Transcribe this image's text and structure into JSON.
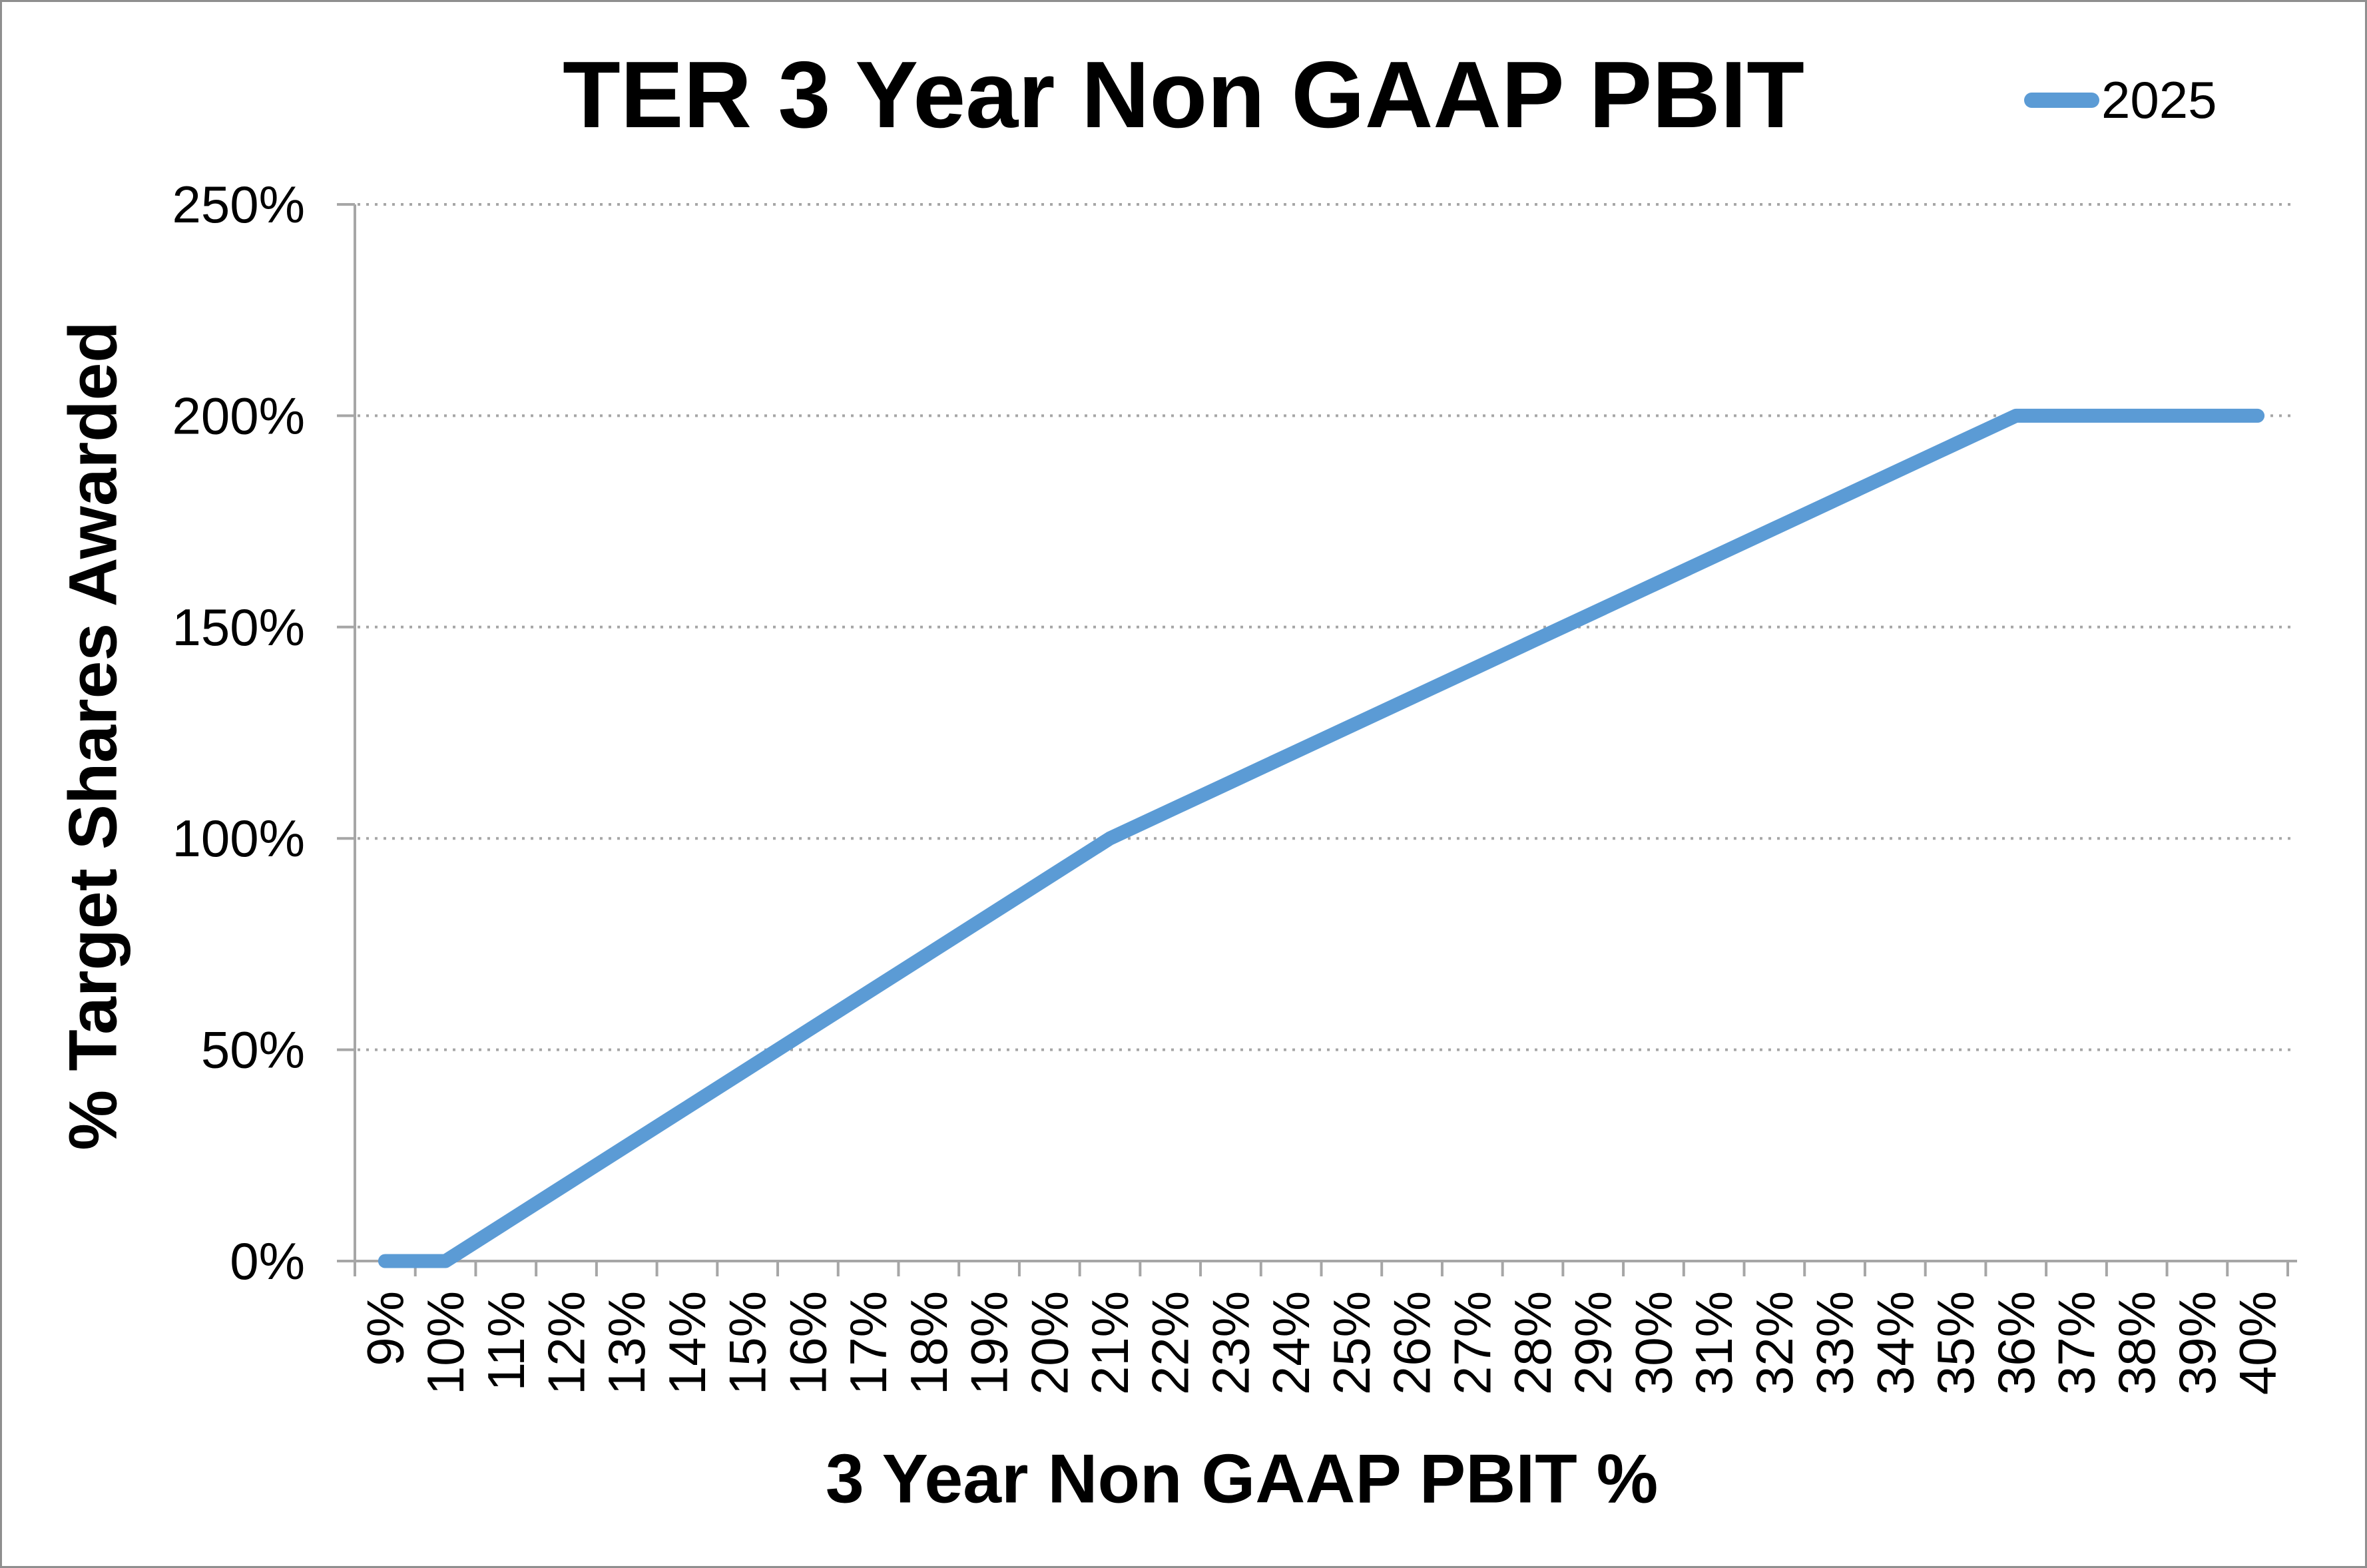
{
  "title": "TER 3 Year Non GAAP PBIT",
  "legend": {
    "series_label": "2025",
    "position": "top-right"
  },
  "y_axis": {
    "title": "% Target Shares Awarded",
    "ticks": [
      "0%",
      "50%",
      "100%",
      "150%",
      "200%",
      "250%"
    ]
  },
  "x_axis": {
    "title": "3 Year Non GAAP PBIT %"
  },
  "colors": {
    "series_line": "#5B9BD5",
    "axis_line": "#A6A6A6",
    "gridline": "#A6A6A6",
    "text": "#000000",
    "frame_border": "#8f8f8f",
    "background": "#ffffff"
  },
  "chart_data": {
    "type": "line",
    "title": "TER 3 Year Non GAAP PBIT",
    "xlabel": "3 Year Non GAAP PBIT %",
    "ylabel": "% Target Shares Awarded",
    "categories": [
      "9%",
      "10%",
      "11%",
      "12%",
      "13%",
      "14%",
      "15%",
      "16%",
      "17%",
      "18%",
      "19%",
      "20%",
      "21%",
      "22%",
      "23%",
      "24%",
      "25%",
      "26%",
      "27%",
      "28%",
      "29%",
      "30%",
      "31%",
      "32%",
      "33%",
      "34%",
      "35%",
      "36%",
      "37%",
      "38%",
      "39%",
      "40%"
    ],
    "series": [
      {
        "name": "2025",
        "color": "#5B9BD5",
        "values": [
          0,
          0,
          9.09,
          18.18,
          27.27,
          36.36,
          45.45,
          54.55,
          63.64,
          72.73,
          81.82,
          90.91,
          100,
          106.67,
          113.33,
          120,
          126.67,
          133.33,
          140,
          146.67,
          153.33,
          160,
          166.67,
          173.33,
          180,
          186.67,
          193.33,
          200,
          200,
          200,
          200,
          200
        ]
      }
    ],
    "ylim": [
      0,
      250
    ],
    "y_tick_step_pct": 50,
    "grid": "horizontal-dotted",
    "legend_position": "top-right",
    "key_points": {
      "threshold": {
        "x": "10%",
        "y_pct": 0
      },
      "target": {
        "x": "21%",
        "y_pct": 100
      },
      "max": {
        "x": "36%",
        "y_pct": 200
      }
    }
  }
}
